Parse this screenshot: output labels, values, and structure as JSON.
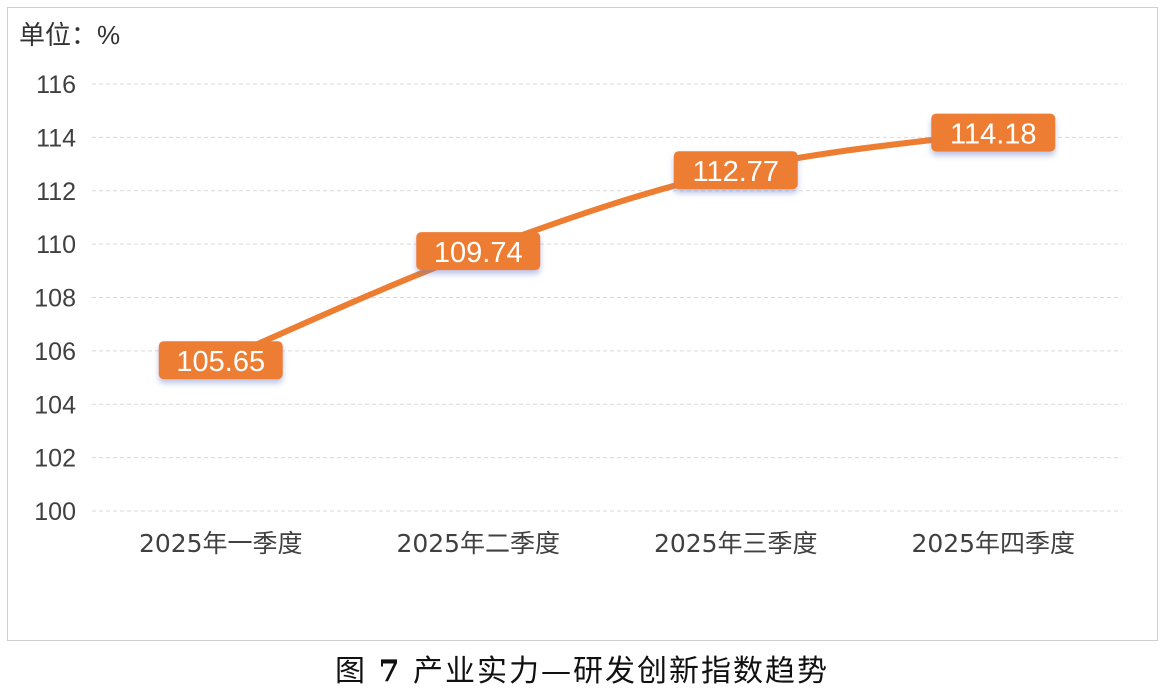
{
  "unit_label": "单位：%",
  "caption": {
    "prefix": "图",
    "number": "7",
    "title": "产业实力—研发创新指数趋势"
  },
  "colors": {
    "line": "#ED7D31",
    "label_bg": "#ED7D31",
    "label_text": "#ffffff",
    "grid": "#d9d9d9",
    "axis_text": "#404040"
  },
  "chart_data": {
    "type": "line",
    "title": "",
    "xlabel": "",
    "ylabel": "单位：%",
    "categories": [
      "2025年一季度",
      "2025年二季度",
      "2025年三季度",
      "2025年四季度"
    ],
    "series": [
      {
        "values": [
          105.65,
          109.74,
          112.77,
          114.18
        ]
      }
    ],
    "data_labels": [
      "105.65",
      "109.74",
      "112.77",
      "114.18"
    ],
    "ylim": [
      100,
      116
    ],
    "yticks": [
      100,
      102,
      104,
      106,
      108,
      110,
      112,
      114,
      116
    ],
    "grid": true,
    "legend": "none"
  }
}
